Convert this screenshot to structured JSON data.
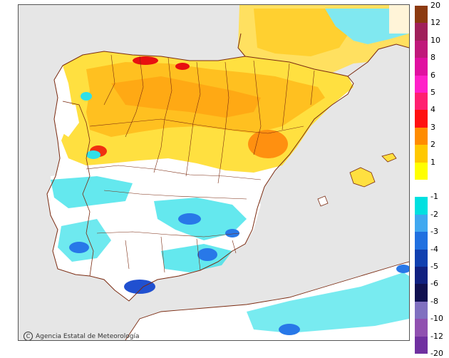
{
  "credit": "Agencia Estatal de Meteorología",
  "legend": {
    "positive": [
      {
        "label": "20",
        "color": "#8c3a10"
      },
      {
        "label": "12",
        "color": "#a0205a"
      },
      {
        "label": "10",
        "color": "#c0187a"
      },
      {
        "label": "8",
        "color": "#e010a0"
      },
      {
        "label": "6",
        "color": "#ff20c8"
      },
      {
        "label": "5",
        "color": "#ff2070"
      },
      {
        "label": "4",
        "color": "#ff1010"
      },
      {
        "label": "3",
        "color": "#ff8c00"
      },
      {
        "label": "2",
        "color": "#ffc800"
      },
      {
        "label": "1",
        "color": "#ffff00"
      }
    ],
    "neutral_label": "-1",
    "negative": [
      {
        "label": "-2",
        "color": "#00e0e0"
      },
      {
        "label": "-3",
        "color": "#40a8f0"
      },
      {
        "label": "-4",
        "color": "#2070e0"
      },
      {
        "label": "-5",
        "color": "#1040b0"
      },
      {
        "label": "-6",
        "color": "#102080"
      },
      {
        "label": "-8",
        "color": "#101050"
      },
      {
        "label": "-10",
        "color": "#8070c0"
      },
      {
        "label": "-12",
        "color": "#9050b0"
      },
      {
        "label": "-20",
        "color": "#7030a0"
      }
    ]
  },
  "colors": {
    "sea": "#e6e6e6",
    "land_base": "#ffffff",
    "border": "#7a2a10"
  }
}
